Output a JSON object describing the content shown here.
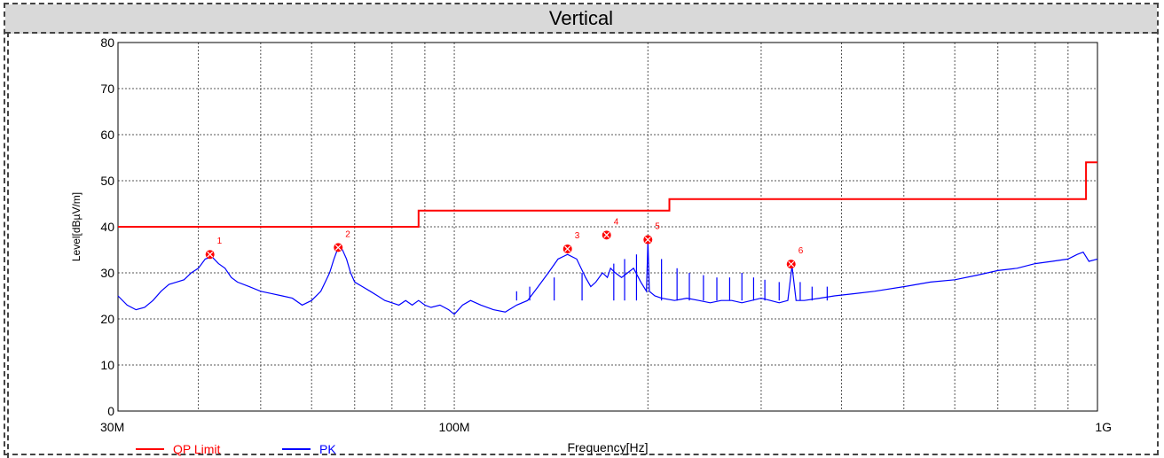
{
  "header": {
    "title": "Vertical"
  },
  "chart_data": {
    "type": "line",
    "title": "Vertical",
    "xlabel": "Frequency[Hz]",
    "ylabel": "Level[dBµV/m]",
    "x_scale": "log",
    "xlim": [
      30000000,
      1000000000
    ],
    "ylim": [
      0,
      80
    ],
    "yticks": [
      0,
      10,
      20,
      30,
      40,
      50,
      60,
      70,
      80
    ],
    "xticks": [
      {
        "value": 30000000,
        "label": "30M"
      },
      {
        "value": 100000000,
        "label": "100M"
      },
      {
        "value": 1000000000,
        "label": "1G"
      }
    ],
    "grid": true,
    "legend_position": "bottom-left",
    "series": [
      {
        "name": "QP Limit",
        "color": "#ff0000",
        "step": true,
        "x": [
          30000000,
          88000000,
          88000000,
          216000000,
          216000000,
          960000000,
          960000000,
          1000000000
        ],
        "y": [
          40,
          40,
          43.5,
          43.5,
          46,
          46,
          54,
          54
        ]
      },
      {
        "name": "PK",
        "color": "#0000ff",
        "x": [
          30000000,
          31000000,
          32000000,
          33000000,
          34000000,
          35000000,
          36000000,
          37000000,
          38000000,
          39000000,
          40000000,
          41000000,
          42000000,
          43000000,
          44000000,
          45000000,
          46000000,
          48000000,
          50000000,
          52000000,
          54000000,
          56000000,
          58000000,
          60000000,
          62000000,
          63000000,
          64000000,
          65000000,
          66000000,
          67000000,
          68000000,
          69000000,
          70000000,
          72000000,
          74000000,
          76000000,
          78000000,
          80000000,
          82000000,
          84000000,
          86000000,
          88000000,
          90000000,
          92000000,
          95000000,
          98000000,
          100000000,
          103000000,
          106000000,
          110000000,
          115000000,
          120000000,
          125000000,
          130000000,
          135000000,
          140000000,
          145000000,
          150000000,
          155000000,
          160000000,
          163000000,
          166000000,
          170000000,
          173000000,
          175000000,
          178000000,
          182000000,
          186000000,
          190000000,
          195000000,
          199000000,
          200000000,
          201000000,
          205000000,
          210000000,
          220000000,
          230000000,
          240000000,
          250000000,
          260000000,
          270000000,
          280000000,
          290000000,
          300000000,
          310000000,
          320000000,
          330000000,
          335000000,
          340000000,
          350000000,
          370000000,
          390000000,
          420000000,
          450000000,
          500000000,
          550000000,
          600000000,
          650000000,
          700000000,
          750000000,
          800000000,
          850000000,
          900000000,
          930000000,
          950000000,
          970000000,
          1000000000
        ],
        "y": [
          25,
          23,
          22,
          22.5,
          24,
          26,
          27.5,
          28,
          28.5,
          30,
          31,
          33,
          33.5,
          32,
          31,
          29,
          28,
          27,
          26,
          25.5,
          25,
          24.5,
          23,
          24,
          26,
          28,
          30,
          33,
          35.5,
          35,
          33,
          30,
          28,
          27,
          26,
          25,
          24,
          23.5,
          23,
          24,
          23,
          24,
          23,
          22.5,
          23,
          22,
          21,
          23,
          24,
          23,
          22,
          21.5,
          23,
          24,
          27,
          30,
          33,
          34,
          33,
          29,
          27,
          28,
          30,
          29,
          31,
          30,
          29,
          30,
          31,
          28,
          26,
          37,
          26,
          25,
          24.5,
          24,
          24.5,
          24,
          23.5,
          24,
          24,
          23.5,
          24,
          24.5,
          24,
          23.5,
          24,
          31.5,
          24,
          24,
          24.5,
          25,
          25.5,
          26,
          27,
          28,
          28.5,
          29.5,
          30.5,
          31,
          32,
          32.5,
          33,
          34,
          34.5,
          32.5,
          33
        ]
      }
    ],
    "spikes": [
      {
        "x": 125000000,
        "y": 26
      },
      {
        "x": 131000000,
        "y": 27
      },
      {
        "x": 143000000,
        "y": 29
      },
      {
        "x": 158000000,
        "y": 30
      },
      {
        "x": 177000000,
        "y": 32
      },
      {
        "x": 184000000,
        "y": 33
      },
      {
        "x": 192000000,
        "y": 34
      },
      {
        "x": 210000000,
        "y": 33
      },
      {
        "x": 222000000,
        "y": 31
      },
      {
        "x": 232000000,
        "y": 30
      },
      {
        "x": 244000000,
        "y": 29.5
      },
      {
        "x": 256000000,
        "y": 29
      },
      {
        "x": 268000000,
        "y": 29
      },
      {
        "x": 280000000,
        "y": 30
      },
      {
        "x": 292000000,
        "y": 29
      },
      {
        "x": 304000000,
        "y": 28.5
      },
      {
        "x": 320000000,
        "y": 28
      },
      {
        "x": 345000000,
        "y": 28
      },
      {
        "x": 360000000,
        "y": 27
      },
      {
        "x": 380000000,
        "y": 27
      }
    ],
    "markers": [
      {
        "label": "1",
        "x": 41700000,
        "y": 34
      },
      {
        "label": "2",
        "x": 66000000,
        "y": 35.5
      },
      {
        "label": "3",
        "x": 150000000,
        "y": 35.2
      },
      {
        "label": "4",
        "x": 172500000,
        "y": 38.2
      },
      {
        "label": "5",
        "x": 200000000,
        "y": 37.2
      },
      {
        "label": "6",
        "x": 334000000,
        "y": 31.9
      }
    ]
  }
}
